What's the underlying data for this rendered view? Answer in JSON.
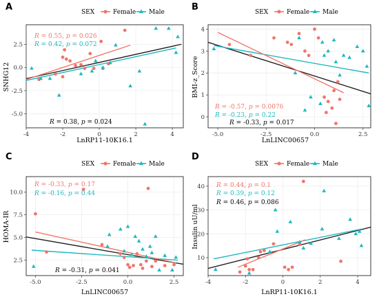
{
  "legend": {
    "title": "SEX",
    "female_label": "Female",
    "male_label": "Male"
  },
  "colors": {
    "female": "#f0756b",
    "male": "#1fb8c0",
    "overall": "#222222",
    "panel_bg": "#ffffff",
    "grid": "#ebebeb"
  },
  "chart_data": [
    {
      "panel": "A",
      "type": "scatter",
      "xlabel": "LnRP11-10K16.1",
      "ylabel": "SNHG12",
      "xlim": [
        -4,
        4.6
      ],
      "ylim": [
        -6.5,
        4.6
      ],
      "xticks": [
        -4,
        -2,
        0,
        2,
        4
      ],
      "yticks": [
        -5.0,
        -2.5,
        0.0,
        2.5
      ],
      "ytick_labels": [
        "-5.0",
        "-2.5",
        "0.0",
        "2.5"
      ],
      "stats": {
        "female": "R = 0.55, p = 0.026",
        "male": "R = 0.42, p = 0.072",
        "overall": "R = 0.38, p = 0.024"
      },
      "series": [
        {
          "name": "Female",
          "points": [
            [
              -3.3,
              -1.3
            ],
            [
              -2.4,
              -0.7
            ],
            [
              -2.0,
              -1.0
            ],
            [
              -2.0,
              1.1
            ],
            [
              -1.9,
              1.9
            ],
            [
              -1.8,
              0.9
            ],
            [
              -1.6,
              0.7
            ],
            [
              -1.3,
              0.2
            ],
            [
              -1.0,
              0.3
            ],
            [
              -0.8,
              -0.1
            ],
            [
              -0.5,
              1.5
            ],
            [
              -0.3,
              -0.1
            ],
            [
              0.1,
              2.8
            ],
            [
              0.2,
              -0.1
            ],
            [
              0.5,
              0.4
            ],
            [
              1.4,
              4.0
            ]
          ]
        },
        {
          "name": "Male",
          "points": [
            [
              -3.7,
              -0.1
            ],
            [
              -3.2,
              -1.2
            ],
            [
              -2.7,
              -1.2
            ],
            [
              -2.2,
              -3.0
            ],
            [
              -1.0,
              -0.7
            ],
            [
              -0.4,
              -0.4
            ],
            [
              -0.2,
              0.7
            ],
            [
              0.2,
              0.0
            ],
            [
              0.6,
              0.5
            ],
            [
              0.9,
              2.4
            ],
            [
              1.7,
              -2.0
            ],
            [
              2.2,
              -0.4
            ],
            [
              2.5,
              -6.1
            ],
            [
              3.1,
              4.2
            ],
            [
              3.8,
              4.2
            ],
            [
              4.2,
              1.6
            ],
            [
              4.3,
              3.3
            ]
          ]
        }
      ],
      "fits": {
        "female": [
          -4,
          -1.3,
          1.7,
          2.4
        ],
        "male": [
          -4,
          -1.4,
          4.2,
          2.1
        ],
        "overall": [
          -4,
          -1.2,
          4.5,
          2.5
        ]
      }
    },
    {
      "panel": "B",
      "type": "scatter",
      "xlabel": "LnLINC00657",
      "ylabel": "BMI-z_Score",
      "xlim": [
        -5.5,
        2.9
      ],
      "ylim": [
        -0.5,
        4.2
      ],
      "xticks": [
        -5.0,
        -2.5,
        0.0,
        2.5
      ],
      "yticks": [
        0,
        1,
        2,
        3,
        4
      ],
      "xtick_labels": [
        "-5.0",
        "-2.5",
        "0.0",
        "2.5"
      ],
      "stats": {
        "female": "R = -0.57, p = 0.0076",
        "male": "R = -0.23, p = 0.22",
        "overall": "R = -0.33, p = 0.017"
      },
      "series": [
        {
          "name": "Female",
          "points": [
            [
              -4.4,
              3.3
            ],
            [
              -3.3,
              2.8
            ],
            [
              -2.1,
              3.6
            ],
            [
              -1.4,
              3.4
            ],
            [
              -1.2,
              3.3
            ],
            [
              -0.8,
              3.8
            ],
            [
              -0.5,
              3.0
            ],
            [
              -0.3,
              2.8
            ],
            [
              0.0,
              4.0
            ],
            [
              0.2,
              3.6
            ],
            [
              0.5,
              0.9
            ],
            [
              0.6,
              0.2
            ],
            [
              0.7,
              0.7
            ],
            [
              0.9,
              0.4
            ],
            [
              1.0,
              1.2
            ],
            [
              1.1,
              -0.3
            ],
            [
              1.2,
              1.6
            ],
            [
              1.3,
              0.8
            ]
          ]
        },
        {
          "name": "Male",
          "points": [
            [
              -5.2,
              3.1
            ],
            [
              -1.0,
              2.0
            ],
            [
              -0.8,
              3.6
            ],
            [
              -0.5,
              0.3
            ],
            [
              -0.2,
              0.9
            ],
            [
              0.3,
              0.6
            ],
            [
              0.4,
              3.4
            ],
            [
              0.5,
              2.8
            ],
            [
              0.7,
              3.0
            ],
            [
              1.0,
              3.5
            ],
            [
              1.1,
              2.5
            ],
            [
              1.3,
              1.9
            ],
            [
              1.5,
              2.8
            ],
            [
              1.8,
              2.7
            ],
            [
              2.2,
              3.2
            ],
            [
              2.5,
              3.0
            ],
            [
              2.7,
              2.3
            ],
            [
              2.8,
              0.5
            ]
          ]
        }
      ],
      "fits": {
        "female": [
          -5.0,
          3.85,
          1.5,
          1.1
        ],
        "male": [
          -5.2,
          3.25,
          2.8,
          2.0
        ],
        "overall": [
          -5.5,
          3.4,
          2.9,
          1.05
        ]
      }
    },
    {
      "panel": "C",
      "type": "scatter",
      "xlabel": "LnLINC00657",
      "ylabel": "HOMA-IR",
      "xlim": [
        -5.5,
        3.0
      ],
      "ylim": [
        0.8,
        11.7
      ],
      "xticks": [
        -5.0,
        -2.5,
        0.0,
        2.5
      ],
      "yticks": [
        2.5,
        5.0,
        7.5,
        10.0
      ],
      "xtick_labels": [
        "-5.0",
        "-2.5",
        "0.0",
        "2.5"
      ],
      "ytick_labels": [
        "2.5",
        "5.0",
        "7.5",
        "10.0"
      ],
      "stats": {
        "female": "R = -0.33, p = 0.17",
        "male": "R = -0.16, p = 0.44",
        "overall": "R = -0.31, p = 0.041"
      },
      "series": [
        {
          "name": "Female",
          "points": [
            [
              -5.0,
              7.6
            ],
            [
              -4.4,
              3.4
            ],
            [
              -2.4,
              10.3
            ],
            [
              -1.4,
              4.2
            ],
            [
              -0.4,
              3.2
            ],
            [
              -0.2,
              2.8
            ],
            [
              0.0,
              2.0
            ],
            [
              0.1,
              1.7
            ],
            [
              0.3,
              1.9
            ],
            [
              0.5,
              3.2
            ],
            [
              0.7,
              2.0
            ],
            [
              0.8,
              1.6
            ],
            [
              1.0,
              2.4
            ],
            [
              1.1,
              10.4
            ],
            [
              1.3,
              1.8
            ],
            [
              1.5,
              2.4
            ],
            [
              2.0,
              1.9
            ],
            [
              2.5,
              2.0
            ]
          ]
        },
        {
          "name": "Male",
          "points": [
            [
              -5.1,
              1.8
            ],
            [
              -1.1,
              4.0
            ],
            [
              -1.0,
              5.3
            ],
            [
              -0.4,
              5.9
            ],
            [
              -0.2,
              3.5
            ],
            [
              0.0,
              6.2
            ],
            [
              0.2,
              3.1
            ],
            [
              0.4,
              5.1
            ],
            [
              0.6,
              4.6
            ],
            [
              0.8,
              3.7
            ],
            [
              1.0,
              2.9
            ],
            [
              1.2,
              4.0
            ],
            [
              1.3,
              3.3
            ],
            [
              1.5,
              5.1
            ],
            [
              1.7,
              1.4
            ],
            [
              2.0,
              3.0
            ],
            [
              2.4,
              1.4
            ],
            [
              2.6,
              2.8
            ]
          ]
        }
      ],
      "fits": {
        "female": [
          -5.0,
          5.6,
          2.6,
          2.2
        ],
        "male": [
          -5.2,
          3.6,
          2.7,
          2.5
        ],
        "overall": [
          -5.5,
          5.05,
          3.0,
          2.05
        ]
      }
    },
    {
      "panel": "D",
      "type": "scatter",
      "xlabel": "LnRP11-10K16.1",
      "ylabel": "Insulin uU/ml",
      "xlim": [
        -4,
        4.7
      ],
      "ylim": [
        2.5,
        44
      ],
      "xticks": [
        -4,
        -2,
        0,
        2,
        4
      ],
      "yticks": [
        10,
        20,
        30,
        40
      ],
      "stats": {
        "female": "R = 0.44, p = 0.1",
        "male": "R = 0.39, p = 0.12",
        "overall": "R = 0.46, p = 0.086"
      },
      "series": [
        {
          "name": "Female",
          "points": [
            [
              -2.3,
              4.0
            ],
            [
              -2.0,
              6.5
            ],
            [
              -1.9,
              9.5
            ],
            [
              -1.8,
              5.0
            ],
            [
              -1.6,
              5.0
            ],
            [
              -1.3,
              10.0
            ],
            [
              -1.2,
              12.5
            ],
            [
              -1.0,
              13.0
            ],
            [
              -0.5,
              15.8
            ],
            [
              0.1,
              6.0
            ],
            [
              0.3,
              5.0
            ],
            [
              0.5,
              6.0
            ],
            [
              0.9,
              15.5
            ],
            [
              1.1,
              42.0
            ],
            [
              3.1,
              8.5
            ]
          ]
        },
        {
          "name": "Male",
          "points": [
            [
              -3.6,
              5.0
            ],
            [
              -1.8,
              3.5
            ],
            [
              -0.7,
              12.5
            ],
            [
              -0.4,
              30.0
            ],
            [
              -0.3,
              21.0
            ],
            [
              0.4,
              25.0
            ],
            [
              0.9,
              16.5
            ],
            [
              1.1,
              14.0
            ],
            [
              1.5,
              16.0
            ],
            [
              2.1,
              22.0
            ],
            [
              2.2,
              38.0
            ],
            [
              3.0,
              18.0
            ],
            [
              3.6,
              26.0
            ],
            [
              3.9,
              20.0
            ],
            [
              4.1,
              21.0
            ],
            [
              4.2,
              15.0
            ]
          ]
        }
      ],
      "fits": {
        "female": [
          -2.4,
          6.0,
          1.2,
          17.5
        ],
        "male": [
          -3.7,
          9.5,
          4.2,
          22.0
        ],
        "overall": [
          -4.0,
          5.5,
          4.7,
          22.8
        ]
      }
    }
  ]
}
